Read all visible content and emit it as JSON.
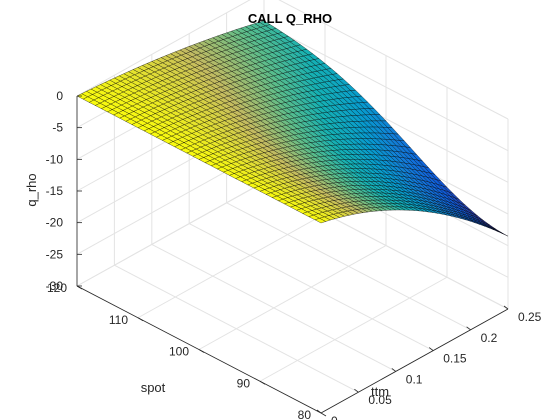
{
  "chart_data": {
    "type": "surface",
    "title": "CALL Q_RHO",
    "xlabel": "ttm",
    "ylabel": "spot",
    "zlabel": "q_rho",
    "xlim": [
      0,
      0.25
    ],
    "ylim": [
      80,
      120
    ],
    "zlim": [
      -30,
      0
    ],
    "x_ticks": [
      "0",
      "0.05",
      "0.1",
      "0.15",
      "0.2",
      "0.25"
    ],
    "y_ticks": [
      "80",
      "90",
      "100",
      "110",
      "120"
    ],
    "z_ticks": [
      "0",
      "-5",
      "-10",
      "-15",
      "-20",
      "-25",
      "-30"
    ],
    "colormap": "parula",
    "grid": true,
    "surface": {
      "ttm_range": [
        0,
        0.25
      ],
      "spot_range": [
        80,
        120
      ],
      "ttm_steps": 40,
      "spot_steps": 40,
      "min_value": -18.5,
      "min_at": {
        "ttm": 0.25,
        "spot": 80
      },
      "value_at_ttm_0": 0,
      "value_at_ttm_0.25_spot_120": -4
    }
  }
}
